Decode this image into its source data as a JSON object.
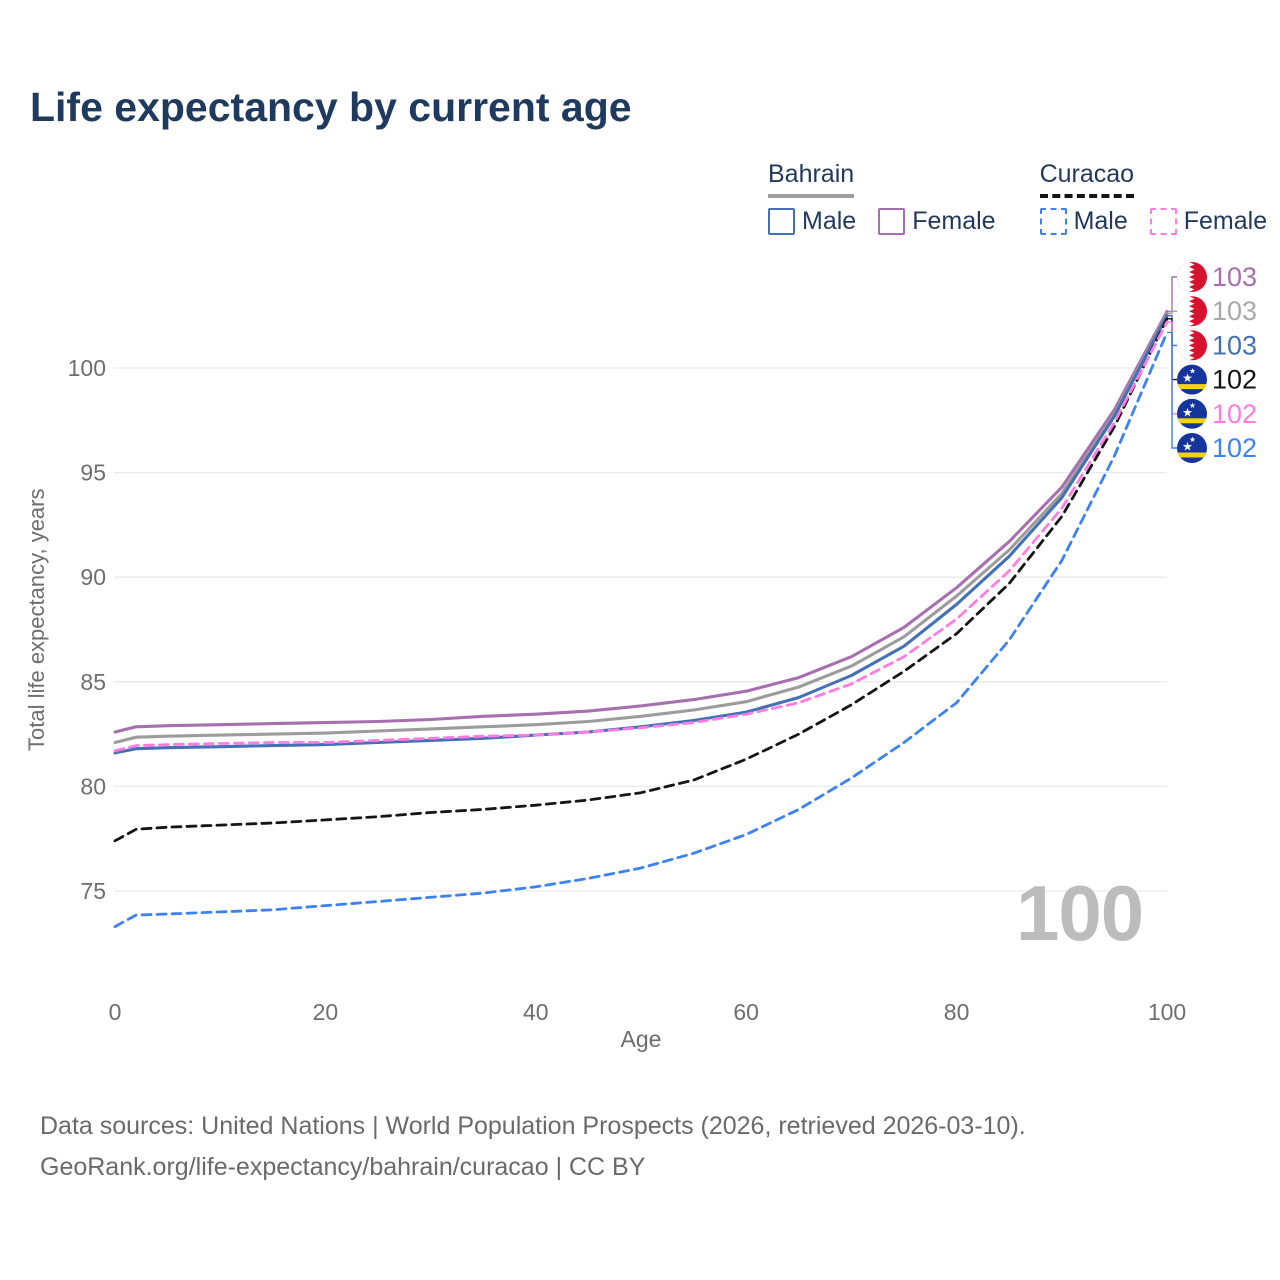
{
  "title": "Life expectancy by current age",
  "watermark": "100",
  "legend": {
    "groups": [
      {
        "country": "Bahrain",
        "line_style": "solid",
        "underline_color": "#9e9e9e",
        "items": [
          {
            "label": "Male",
            "color": "#4470b5",
            "dashed": false
          },
          {
            "label": "Female",
            "color": "#a76fb0",
            "dashed": false
          }
        ]
      },
      {
        "country": "Curacao",
        "line_style": "dashed",
        "underline_color": "#151515",
        "items": [
          {
            "label": "Male",
            "color": "#3d82f2",
            "dashed": true
          },
          {
            "label": "Female",
            "color": "#ff7ce2",
            "dashed": true
          }
        ]
      }
    ]
  },
  "chart_data": {
    "type": "line",
    "title": "Life expectancy by current age",
    "xlabel": "Age",
    "ylabel": "Total life expectancy, years",
    "x_ticks": [
      0,
      20,
      40,
      60,
      80,
      100
    ],
    "y_ticks": [
      75,
      80,
      85,
      90,
      95,
      100
    ],
    "xlim": [
      0,
      100
    ],
    "ylim": [
      72.5,
      104
    ],
    "grid": "horizontal-only",
    "legend_position": "top-right",
    "x": [
      0,
      2,
      5,
      10,
      15,
      20,
      25,
      30,
      35,
      40,
      45,
      50,
      55,
      60,
      65,
      70,
      75,
      80,
      85,
      90,
      95,
      100
    ],
    "series": [
      {
        "name": "Bahrain Female",
        "country": "Bahrain",
        "sex": "Female",
        "style": "solid",
        "color": "#a76fb0",
        "flag": "bahrain",
        "end_label": "103",
        "values": [
          82.6,
          82.85,
          82.9,
          82.95,
          83.0,
          83.05,
          83.1,
          83.2,
          83.35,
          83.45,
          83.6,
          83.85,
          84.15,
          84.55,
          85.2,
          86.2,
          87.6,
          89.5,
          91.7,
          94.3,
          98.0,
          102.7
        ]
      },
      {
        "name": "Bahrain",
        "country": "Bahrain",
        "sex": "Both",
        "style": "solid",
        "color": "#9c9c9c",
        "flag": "bahrain",
        "end_label": "103",
        "label_color": "#a8a8a8",
        "values": [
          82.1,
          82.35,
          82.4,
          82.45,
          82.5,
          82.55,
          82.65,
          82.75,
          82.85,
          82.95,
          83.1,
          83.35,
          83.65,
          84.05,
          84.75,
          85.75,
          87.15,
          89.1,
          91.3,
          94.0,
          97.8,
          102.6
        ]
      },
      {
        "name": "Bahrain Male",
        "country": "Bahrain",
        "sex": "Male",
        "style": "solid",
        "color": "#4470b5",
        "flag": "bahrain",
        "end_label": "103",
        "values": [
          81.6,
          81.8,
          81.85,
          81.9,
          81.95,
          82.0,
          82.1,
          82.2,
          82.3,
          82.45,
          82.6,
          82.85,
          83.15,
          83.55,
          84.25,
          85.3,
          86.7,
          88.7,
          91.0,
          93.8,
          97.7,
          102.5
        ]
      },
      {
        "name": "Curacao",
        "country": "Curacao",
        "sex": "Both",
        "style": "dashed",
        "color": "#151515",
        "flag": "curacao",
        "end_label": "102",
        "values": [
          77.4,
          77.95,
          78.05,
          78.15,
          78.25,
          78.4,
          78.55,
          78.75,
          78.9,
          79.1,
          79.35,
          79.7,
          80.3,
          81.3,
          82.5,
          83.9,
          85.5,
          87.3,
          89.7,
          92.9,
          97.2,
          102.35
        ]
      },
      {
        "name": "Curacao Female",
        "country": "Curacao",
        "sex": "Female",
        "style": "dashed",
        "color": "#ff7ce2",
        "flag": "curacao",
        "end_label": "102",
        "values": [
          81.7,
          81.95,
          82.0,
          82.05,
          82.1,
          82.1,
          82.2,
          82.3,
          82.4,
          82.45,
          82.6,
          82.8,
          83.05,
          83.45,
          84.0,
          84.9,
          86.2,
          88.0,
          90.3,
          93.3,
          97.4,
          102.2
        ]
      },
      {
        "name": "Curacao Male",
        "country": "Curacao",
        "sex": "Male",
        "style": "dashed",
        "color": "#3d82f2",
        "flag": "curacao",
        "end_label": "102",
        "values": [
          73.3,
          73.85,
          73.9,
          74.0,
          74.1,
          74.3,
          74.5,
          74.7,
          74.9,
          75.2,
          75.6,
          76.1,
          76.8,
          77.7,
          78.9,
          80.4,
          82.1,
          84.0,
          87.0,
          90.8,
          95.8,
          101.7
        ]
      }
    ]
  },
  "footer": {
    "line1": "Data sources: United Nations | World Population Prospects (2026, retrieved 2026-03-10).",
    "line2": "GeoRank.org/life-expectancy/bahrain/curacao | CC BY"
  },
  "colors": {
    "title_text": "#1e3a5f",
    "legend_text": "#22395c",
    "axis_text": "#6e6e6e",
    "grid": "#e9e9e9",
    "watermark": "#bcbcbc",
    "footer_text": "#6a6a6a",
    "bahrain_flag_red": "#d5132f",
    "curacao_flag_blue": "#16359c",
    "curacao_flag_yellow": "#f7d117"
  }
}
